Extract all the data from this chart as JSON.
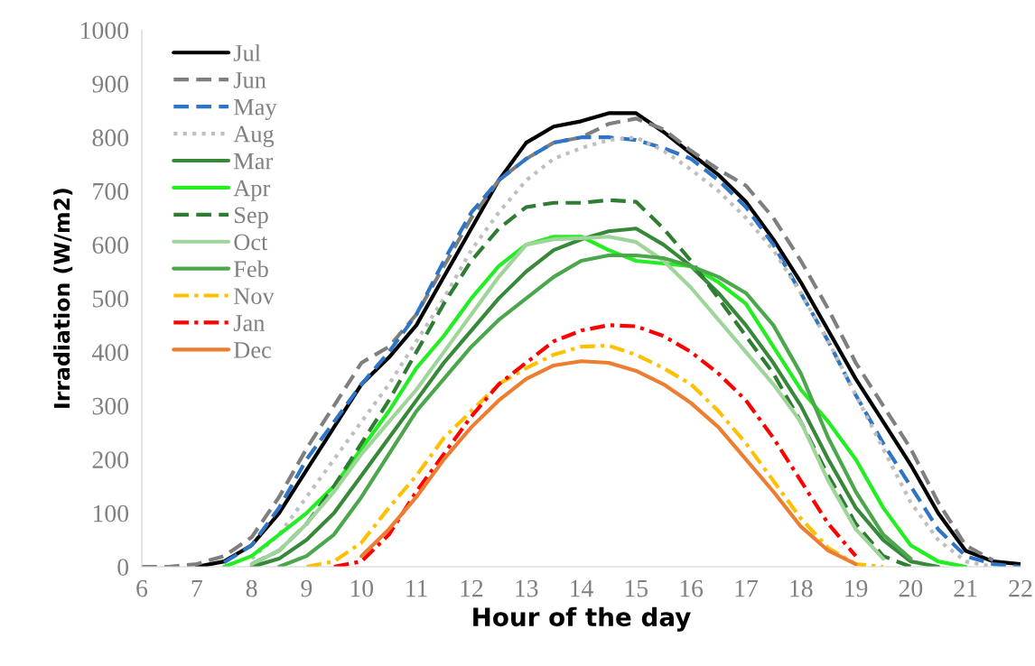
{
  "chart_data": {
    "type": "line",
    "xlabel": "Hour of the day",
    "ylabel": "Irradiation (W/m2)",
    "x": [
      6,
      6.5,
      7,
      7.5,
      8,
      8.5,
      9,
      9.5,
      10,
      10.5,
      11,
      11.5,
      12,
      12.5,
      13,
      13.5,
      14,
      14.5,
      15,
      15.5,
      16,
      16.5,
      17,
      17.5,
      18,
      18.5,
      19,
      19.5,
      20,
      20.5,
      21,
      21.5,
      22
    ],
    "xlim": [
      6,
      22
    ],
    "xticks": [
      6,
      7,
      8,
      9,
      10,
      11,
      12,
      13,
      14,
      15,
      16,
      17,
      18,
      19,
      20,
      21,
      22
    ],
    "ylim": [
      0,
      1000
    ],
    "yticks": [
      0,
      100,
      200,
      300,
      400,
      500,
      600,
      700,
      800,
      900,
      1000
    ],
    "grid": false,
    "legend": "top left",
    "marker": "none",
    "series": [
      {
        "name": "Jul",
        "color": "#000000",
        "line_style": "solid",
        "values": [
          null,
          null,
          0,
          10,
          40,
          100,
          180,
          260,
          340,
          390,
          450,
          540,
          630,
          720,
          790,
          820,
          830,
          845,
          845,
          810,
          770,
          730,
          680,
          610,
          530,
          440,
          350,
          270,
          190,
          100,
          30,
          10,
          5
        ]
      },
      {
        "name": "Jun",
        "color": "#7f7f7f",
        "line_style": "dashed",
        "values": [
          0,
          0,
          5,
          20,
          55,
          130,
          220,
          300,
          380,
          410,
          470,
          560,
          650,
          720,
          760,
          790,
          800,
          825,
          835,
          815,
          775,
          740,
          710,
          650,
          570,
          480,
          380,
          300,
          220,
          120,
          40,
          12,
          null
        ]
      },
      {
        "name": "May",
        "color": "#2e75c6",
        "line_style": "dashed",
        "values": [
          null,
          null,
          null,
          8,
          40,
          110,
          200,
          270,
          340,
          400,
          470,
          570,
          660,
          720,
          760,
          790,
          800,
          800,
          795,
          780,
          760,
          720,
          670,
          600,
          510,
          420,
          320,
          230,
          150,
          70,
          20,
          5,
          0
        ]
      },
      {
        "name": "Aug",
        "color": "#bfbfbf",
        "line_style": "dotted",
        "values": [
          null,
          null,
          null,
          null,
          15,
          60,
          130,
          200,
          270,
          340,
          420,
          500,
          590,
          660,
          720,
          760,
          780,
          795,
          800,
          775,
          740,
          700,
          650,
          590,
          510,
          420,
          320,
          220,
          120,
          50,
          10,
          0,
          null
        ]
      },
      {
        "name": "Mar",
        "color": "#38883a",
        "line_style": "solid",
        "values": [
          null,
          null,
          null,
          null,
          0,
          15,
          50,
          100,
          170,
          240,
          310,
          380,
          440,
          500,
          550,
          590,
          610,
          625,
          630,
          600,
          560,
          510,
          450,
          380,
          300,
          200,
          110,
          50,
          10,
          0,
          null,
          null,
          null
        ]
      },
      {
        "name": "Apr",
        "color": "#22ee22",
        "line_style": "solid",
        "values": [
          null,
          null,
          null,
          0,
          20,
          60,
          100,
          150,
          220,
          290,
          370,
          430,
          500,
          560,
          600,
          615,
          615,
          590,
          570,
          565,
          560,
          530,
          490,
          410,
          330,
          270,
          200,
          110,
          40,
          10,
          0,
          null,
          null
        ]
      },
      {
        "name": "Sep",
        "color": "#2e7d32",
        "line_style": "dashed",
        "values": [
          null,
          null,
          null,
          null,
          5,
          30,
          80,
          150,
          230,
          310,
          400,
          490,
          570,
          630,
          670,
          678,
          678,
          683,
          680,
          630,
          570,
          500,
          430,
          360,
          270,
          170,
          80,
          20,
          0,
          null,
          null,
          null,
          null
        ]
      },
      {
        "name": "Oct",
        "color": "#9fd49a",
        "line_style": "solid",
        "values": [
          null,
          null,
          null,
          null,
          5,
          30,
          80,
          140,
          210,
          270,
          330,
          400,
          470,
          540,
          600,
          610,
          612,
          615,
          605,
          570,
          520,
          460,
          400,
          340,
          270,
          160,
          70,
          15,
          null,
          null,
          null,
          null,
          null
        ]
      },
      {
        "name": "Feb",
        "color": "#4ca64c",
        "line_style": "solid",
        "values": [
          null,
          null,
          null,
          null,
          null,
          0,
          20,
          60,
          130,
          210,
          290,
          350,
          410,
          460,
          500,
          540,
          570,
          580,
          580,
          575,
          560,
          540,
          510,
          450,
          360,
          240,
          140,
          60,
          15,
          null,
          null,
          null,
          null
        ]
      },
      {
        "name": "Nov",
        "color": "#ffc000",
        "line_style": "dashdot",
        "values": [
          null,
          null,
          null,
          null,
          null,
          null,
          0,
          10,
          45,
          110,
          170,
          240,
          290,
          340,
          370,
          395,
          410,
          412,
          395,
          370,
          340,
          290,
          230,
          160,
          90,
          35,
          5,
          0,
          null,
          null,
          null,
          null,
          null
        ]
      },
      {
        "name": "Jan",
        "color": "#ff0000",
        "line_style": "dashdot",
        "values": [
          null,
          null,
          null,
          null,
          null,
          null,
          null,
          0,
          10,
          60,
          140,
          210,
          280,
          340,
          380,
          420,
          440,
          450,
          448,
          430,
          400,
          360,
          310,
          240,
          160,
          80,
          20,
          null,
          null,
          null,
          null,
          null,
          null
        ]
      },
      {
        "name": "Dec",
        "color": "#ed7d31",
        "line_style": "solid",
        "values": [
          null,
          null,
          null,
          null,
          null,
          null,
          null,
          null,
          20,
          70,
          130,
          200,
          260,
          310,
          350,
          375,
          383,
          380,
          365,
          340,
          305,
          260,
          200,
          140,
          75,
          30,
          5,
          null,
          null,
          null,
          null,
          null,
          null
        ]
      }
    ]
  }
}
